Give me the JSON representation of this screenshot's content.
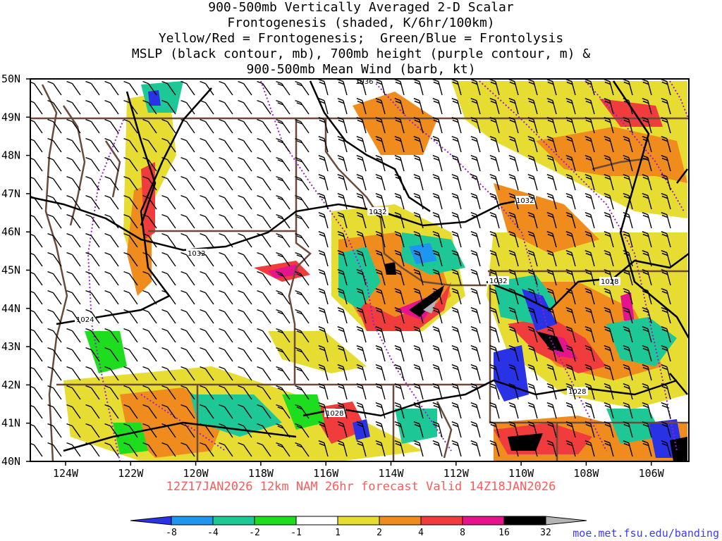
{
  "title": {
    "line1": "900-500mb Vertically Averaged 2-D Scalar",
    "line2": "Frontogenesis (shaded, K/6hr/100km)",
    "line3": "Yellow/Red = Frontogenesis;  Green/Blue = Frontolysis",
    "line4": "MSLP (black contour, mb), 700mb height (purple contour, m) &",
    "line5": "900-500mb Mean Wind (barb, kt)"
  },
  "map": {
    "lat_labels": [
      "50N",
      "49N",
      "48N",
      "47N",
      "46N",
      "45N",
      "44N",
      "43N",
      "42N",
      "41N",
      "40N"
    ],
    "lon_labels": [
      "124W",
      "122W",
      "120W",
      "118W",
      "116W",
      "114W",
      "112W",
      "110W",
      "108W",
      "106W"
    ],
    "mslp_contour_labels": [
      "1036",
      "1032",
      "1032",
      "1032",
      "1032",
      "1028",
      "1028",
      "1028",
      "1024"
    ],
    "colors": {
      "mslp": "#000000",
      "height": "#9a1ec8",
      "boundary": "#6b4a3a"
    }
  },
  "forecast_label": "12Z17JAN2026 12km NAM 26hr forecast Valid 14Z18JAN2026",
  "colorbar": {
    "labels": [
      "-8",
      "-4",
      "-2",
      "-1",
      "1",
      "2",
      "4",
      "8",
      "16",
      "32"
    ],
    "colors": [
      "#2a32e6",
      "#1e96f0",
      "#1ec896",
      "#1edc1e",
      "#ffffff",
      "#e6dc32",
      "#f08c1e",
      "#f03c3c",
      "#e6148c",
      "#000000",
      "#b4b4b4"
    ]
  },
  "credit": "moe.met.fsu.edu/banding"
}
